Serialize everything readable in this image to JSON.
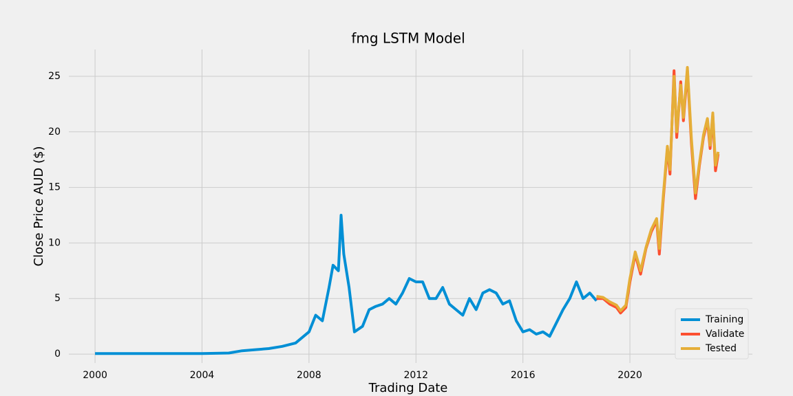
{
  "chart_data": {
    "type": "line",
    "title": "fmg LSTM Model",
    "x_label": "Trading Date",
    "y_label": "Close Price AUD ($)",
    "xlim": [
      1999.02,
      2024.58
    ],
    "ylim": [
      -0.8,
      27.41
    ],
    "xticks": [
      2000,
      2004,
      2008,
      2012,
      2016,
      2020
    ],
    "yticks": [
      0,
      5,
      10,
      15,
      20,
      25
    ],
    "grid": true,
    "legend": "lower right",
    "series": [
      {
        "name": "Training",
        "color": "#008fd5",
        "x": [
          2000,
          2001,
          2002,
          2003,
          2004,
          2005,
          2005.5,
          2006,
          2006.5,
          2007,
          2007.5,
          2008,
          2008.25,
          2008.5,
          2008.75,
          2008.9,
          2009.1,
          2009.2,
          2009.3,
          2009.5,
          2009.7,
          2010,
          2010.25,
          2010.5,
          2010.75,
          2011,
          2011.25,
          2011.5,
          2011.75,
          2012,
          2012.25,
          2012.5,
          2012.75,
          2013,
          2013.25,
          2013.5,
          2013.75,
          2014,
          2014.25,
          2014.5,
          2014.75,
          2015,
          2015.25,
          2015.5,
          2015.75,
          2016,
          2016.25,
          2016.5,
          2016.75,
          2017,
          2017.25,
          2017.5,
          2017.75,
          2018,
          2018.25,
          2018.5,
          2018.75
        ],
        "values": [
          0.05,
          0.05,
          0.05,
          0.05,
          0.05,
          0.1,
          0.3,
          0.4,
          0.5,
          0.7,
          1.0,
          2.0,
          3.5,
          3.0,
          6.0,
          8.0,
          7.5,
          12.5,
          9.0,
          6.0,
          2.0,
          2.5,
          4.0,
          4.3,
          4.5,
          5.0,
          4.5,
          5.5,
          6.8,
          6.5,
          6.5,
          5.0,
          5.0,
          6.0,
          4.5,
          4.0,
          3.5,
          5.0,
          4.0,
          5.5,
          5.8,
          5.5,
          4.5,
          4.8,
          3.0,
          2.0,
          2.2,
          1.8,
          2.0,
          1.6,
          2.8,
          4.0,
          5.0,
          6.5,
          5.0,
          5.5,
          4.8
        ]
      },
      {
        "name": "Validate",
        "color": "#fc4f30",
        "x": [
          2018.75,
          2019,
          2019.25,
          2019.5,
          2019.65,
          2019.85,
          2020,
          2020.2,
          2020.4,
          2020.6,
          2020.8,
          2021,
          2021.1,
          2021.25,
          2021.4,
          2021.5,
          2021.65,
          2021.75,
          2021.9,
          2022,
          2022.15,
          2022.3,
          2022.45,
          2022.6,
          2022.75,
          2022.9,
          2023,
          2023.1,
          2023.2,
          2023.3
        ],
        "values": [
          5.0,
          5.0,
          4.5,
          4.2,
          3.7,
          4.2,
          6.5,
          9.0,
          7.2,
          9.5,
          11.0,
          12.0,
          9.0,
          14.0,
          18.5,
          16.2,
          25.5,
          19.5,
          24.5,
          21.0,
          25.5,
          19.0,
          14.0,
          17.0,
          19.5,
          21.0,
          18.5,
          21.5,
          16.5,
          18.0
        ]
      },
      {
        "name": "Tested",
        "color": "#e5ae38",
        "x": [
          2018.75,
          2019,
          2019.25,
          2019.5,
          2019.65,
          2019.85,
          2020,
          2020.2,
          2020.4,
          2020.6,
          2020.8,
          2021,
          2021.1,
          2021.25,
          2021.4,
          2021.5,
          2021.65,
          2021.75,
          2021.9,
          2022,
          2022.15,
          2022.3,
          2022.45,
          2022.6,
          2022.75,
          2022.9,
          2023,
          2023.1,
          2023.2,
          2023.3
        ],
        "values": [
          5.2,
          5.1,
          4.7,
          4.4,
          3.9,
          4.4,
          6.8,
          9.2,
          7.5,
          9.6,
          11.2,
          12.2,
          9.5,
          14.3,
          18.7,
          16.6,
          25.0,
          20.0,
          24.2,
          21.3,
          25.8,
          19.4,
          14.5,
          17.2,
          19.7,
          21.2,
          18.8,
          21.7,
          17.0,
          18.2
        ]
      }
    ]
  }
}
